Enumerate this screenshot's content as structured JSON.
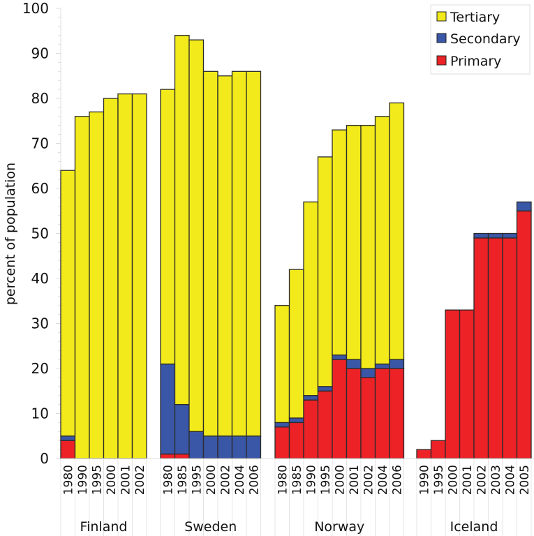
{
  "chart_data": {
    "type": "bar",
    "stacked": true,
    "title": "",
    "xlabel": "",
    "ylabel": "percent of population",
    "ylim": [
      0,
      100
    ],
    "yticks": [
      0,
      10,
      20,
      30,
      40,
      50,
      60,
      70,
      80,
      90,
      100
    ],
    "grid": false,
    "legend_position": "top-right",
    "series_order": [
      "Primary",
      "Secondary",
      "Tertiary"
    ],
    "legend": [
      {
        "name": "Tertiary",
        "color": "#f2ea1a"
      },
      {
        "name": "Secondary",
        "color": "#3a56a6"
      },
      {
        "name": "Primary",
        "color": "#ec2227"
      }
    ],
    "groups": [
      {
        "name": "Finland",
        "bars": [
          {
            "year": "1980",
            "Primary": 4,
            "Secondary": 1,
            "Tertiary": 59
          },
          {
            "year": "1990",
            "Primary": 0,
            "Secondary": 0,
            "Tertiary": 76
          },
          {
            "year": "1995",
            "Primary": 0,
            "Secondary": 0,
            "Tertiary": 77
          },
          {
            "year": "2000",
            "Primary": 0,
            "Secondary": 0,
            "Tertiary": 80
          },
          {
            "year": "2001",
            "Primary": 0,
            "Secondary": 0,
            "Tertiary": 81
          },
          {
            "year": "2002",
            "Primary": 0,
            "Secondary": 0,
            "Tertiary": 81
          }
        ]
      },
      {
        "name": "Sweden",
        "bars": [
          {
            "year": "1980",
            "Primary": 1,
            "Secondary": 20,
            "Tertiary": 61
          },
          {
            "year": "1985",
            "Primary": 1,
            "Secondary": 11,
            "Tertiary": 82
          },
          {
            "year": "1995",
            "Primary": 0,
            "Secondary": 6,
            "Tertiary": 87
          },
          {
            "year": "2000",
            "Primary": 0,
            "Secondary": 5,
            "Tertiary": 81
          },
          {
            "year": "2002",
            "Primary": 0,
            "Secondary": 5,
            "Tertiary": 80
          },
          {
            "year": "2004",
            "Primary": 0,
            "Secondary": 5,
            "Tertiary": 81
          },
          {
            "year": "2006",
            "Primary": 0,
            "Secondary": 5,
            "Tertiary": 81
          }
        ]
      },
      {
        "name": "Norway",
        "bars": [
          {
            "year": "1980",
            "Primary": 7,
            "Secondary": 1,
            "Tertiary": 26
          },
          {
            "year": "1985",
            "Primary": 8,
            "Secondary": 1,
            "Tertiary": 33
          },
          {
            "year": "1990",
            "Primary": 13,
            "Secondary": 1,
            "Tertiary": 43
          },
          {
            "year": "1995",
            "Primary": 15,
            "Secondary": 1,
            "Tertiary": 51
          },
          {
            "year": "2000",
            "Primary": 22,
            "Secondary": 1,
            "Tertiary": 50
          },
          {
            "year": "2001",
            "Primary": 20,
            "Secondary": 2,
            "Tertiary": 52
          },
          {
            "year": "2002",
            "Primary": 18,
            "Secondary": 2,
            "Tertiary": 54
          },
          {
            "year": "2004",
            "Primary": 20,
            "Secondary": 1,
            "Tertiary": 55
          },
          {
            "year": "2006",
            "Primary": 20,
            "Secondary": 2,
            "Tertiary": 57
          }
        ]
      },
      {
        "name": "Iceland",
        "bars": [
          {
            "year": "1990",
            "Primary": 2,
            "Secondary": 0,
            "Tertiary": 0
          },
          {
            "year": "1995",
            "Primary": 4,
            "Secondary": 0,
            "Tertiary": 0
          },
          {
            "year": "2000",
            "Primary": 33,
            "Secondary": 0,
            "Tertiary": 0
          },
          {
            "year": "2001",
            "Primary": 33,
            "Secondary": 0,
            "Tertiary": 0
          },
          {
            "year": "2002",
            "Primary": 49,
            "Secondary": 1,
            "Tertiary": 0
          },
          {
            "year": "2003",
            "Primary": 49,
            "Secondary": 1,
            "Tertiary": 0
          },
          {
            "year": "2004",
            "Primary": 49,
            "Secondary": 1,
            "Tertiary": 0
          },
          {
            "year": "2005",
            "Primary": 55,
            "Secondary": 2,
            "Tertiary": 0
          }
        ]
      }
    ]
  }
}
